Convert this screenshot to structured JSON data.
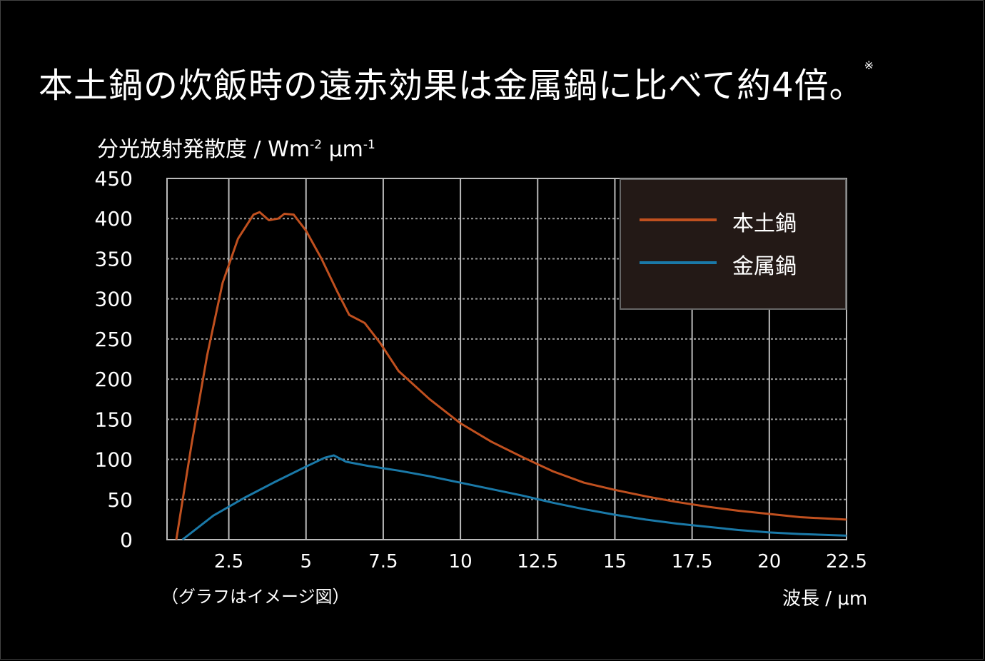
{
  "header": {
    "title": "本土鍋の炊飯時の遠赤効果は金属鍋に比べて約4倍。",
    "title_mark": "※"
  },
  "chart_data": {
    "type": "line",
    "ylabel_main": "分光放射発散度 / Wm",
    "ylabel_exp1": "-2",
    "ylabel_unit2": " μm",
    "ylabel_exp2": "-1",
    "xlabel": "波長 / μm",
    "note": "（グラフはイメージ図）",
    "xlim": [
      0.5,
      22.5
    ],
    "ylim": [
      0,
      450
    ],
    "x_ticks": [
      "2.5",
      "5",
      "7.5",
      "10",
      "12.5",
      "15",
      "17.5",
      "20",
      "22.5"
    ],
    "x_tick_values": [
      2.5,
      5,
      7.5,
      10,
      12.5,
      15,
      17.5,
      20,
      22.5
    ],
    "y_ticks": [
      "0",
      "50",
      "100",
      "150",
      "200",
      "250",
      "300",
      "350",
      "400",
      "450"
    ],
    "y_tick_values": [
      0,
      50,
      100,
      150,
      200,
      250,
      300,
      350,
      400,
      450
    ],
    "grid": true,
    "legend_position": "top-right",
    "series": [
      {
        "name": "本土鍋",
        "color": "#c0501f",
        "points": [
          [
            0.8,
            0
          ],
          [
            1.3,
            120
          ],
          [
            1.8,
            230
          ],
          [
            2.3,
            320
          ],
          [
            2.8,
            375
          ],
          [
            3.3,
            405
          ],
          [
            3.5,
            408
          ],
          [
            3.8,
            398
          ],
          [
            4.1,
            400
          ],
          [
            4.3,
            406
          ],
          [
            4.6,
            405
          ],
          [
            5.0,
            385
          ],
          [
            5.5,
            350
          ],
          [
            6.0,
            310
          ],
          [
            6.4,
            280
          ],
          [
            6.9,
            270
          ],
          [
            7.4,
            245
          ],
          [
            8.0,
            210
          ],
          [
            9.0,
            175
          ],
          [
            10.0,
            145
          ],
          [
            11.0,
            122
          ],
          [
            12.0,
            103
          ],
          [
            13.0,
            85
          ],
          [
            14.0,
            71
          ],
          [
            15.0,
            62
          ],
          [
            16.0,
            54
          ],
          [
            17.0,
            47
          ],
          [
            18.0,
            41
          ],
          [
            19.0,
            36
          ],
          [
            20.0,
            32
          ],
          [
            21.0,
            28
          ],
          [
            22.5,
            25
          ]
        ]
      },
      {
        "name": "金属鍋",
        "color": "#1a79a8",
        "points": [
          [
            1.0,
            0
          ],
          [
            2.0,
            30
          ],
          [
            3.0,
            52
          ],
          [
            4.0,
            72
          ],
          [
            5.0,
            91
          ],
          [
            5.6,
            102
          ],
          [
            5.9,
            105
          ],
          [
            6.3,
            97
          ],
          [
            7.0,
            92
          ],
          [
            8.0,
            86
          ],
          [
            9.0,
            79
          ],
          [
            10.0,
            71
          ],
          [
            11.0,
            63
          ],
          [
            12.0,
            55
          ],
          [
            13.0,
            46
          ],
          [
            14.0,
            38
          ],
          [
            15.0,
            31
          ],
          [
            16.0,
            25
          ],
          [
            17.0,
            20
          ],
          [
            18.0,
            16
          ],
          [
            19.0,
            12
          ],
          [
            20.0,
            9
          ],
          [
            21.0,
            7
          ],
          [
            22.5,
            5
          ]
        ]
      }
    ]
  }
}
